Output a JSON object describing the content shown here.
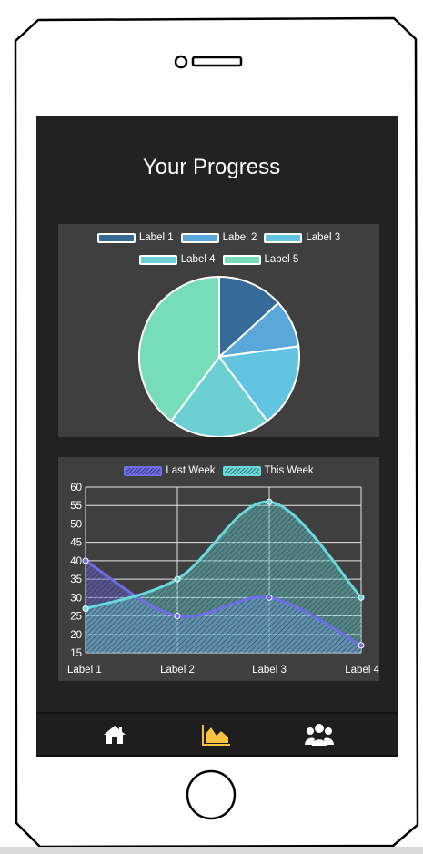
{
  "screen": {
    "title": "Your Progress"
  },
  "pie_chart": {
    "legend": [
      {
        "label": "Label 1",
        "color": "#356a99"
      },
      {
        "label": "Label 2",
        "color": "#5aa7d9"
      },
      {
        "label": "Label 3",
        "color": "#63c4e1"
      },
      {
        "label": "Label 4",
        "color": "#6ccfd3"
      },
      {
        "label": "Label 5",
        "color": "#77dcba"
      }
    ]
  },
  "line_chart": {
    "legend": [
      {
        "label": "Last Week",
        "color": "#6f6ce8"
      },
      {
        "label": "This Week",
        "color": "#6ad9dd"
      }
    ]
  },
  "nav": {
    "items": [
      {
        "name": "home",
        "icon": "home-icon",
        "active": false
      },
      {
        "name": "progress",
        "icon": "area-chart-icon",
        "active": true,
        "active_color": "#f5c242"
      },
      {
        "name": "friends",
        "icon": "group-icon",
        "active": false
      }
    ]
  },
  "chart_data": [
    {
      "type": "pie",
      "categories": [
        "Label 1",
        "Label 2",
        "Label 3",
        "Label 4",
        "Label 5"
      ],
      "values": [
        11,
        8,
        14,
        17,
        33
      ],
      "colors": [
        "#356a99",
        "#5aa7d9",
        "#63c4e1",
        "#6ccfd3",
        "#77dcba"
      ],
      "legend_placement": "top"
    },
    {
      "type": "line",
      "categories": [
        "Label 1",
        "Label 2",
        "Label 3",
        "Label 4"
      ],
      "series": [
        {
          "name": "Last Week",
          "values": [
            40,
            25,
            30,
            17
          ],
          "color": "#6f6ce8"
        },
        {
          "name": "This Week",
          "values": [
            27,
            35,
            56,
            30
          ],
          "color": "#6ad9dd"
        }
      ],
      "ylim": [
        15,
        60
      ],
      "yticks": [
        15,
        20,
        25,
        30,
        35,
        40,
        45,
        50,
        55,
        60
      ],
      "grid": true,
      "legend_placement": "top"
    }
  ]
}
